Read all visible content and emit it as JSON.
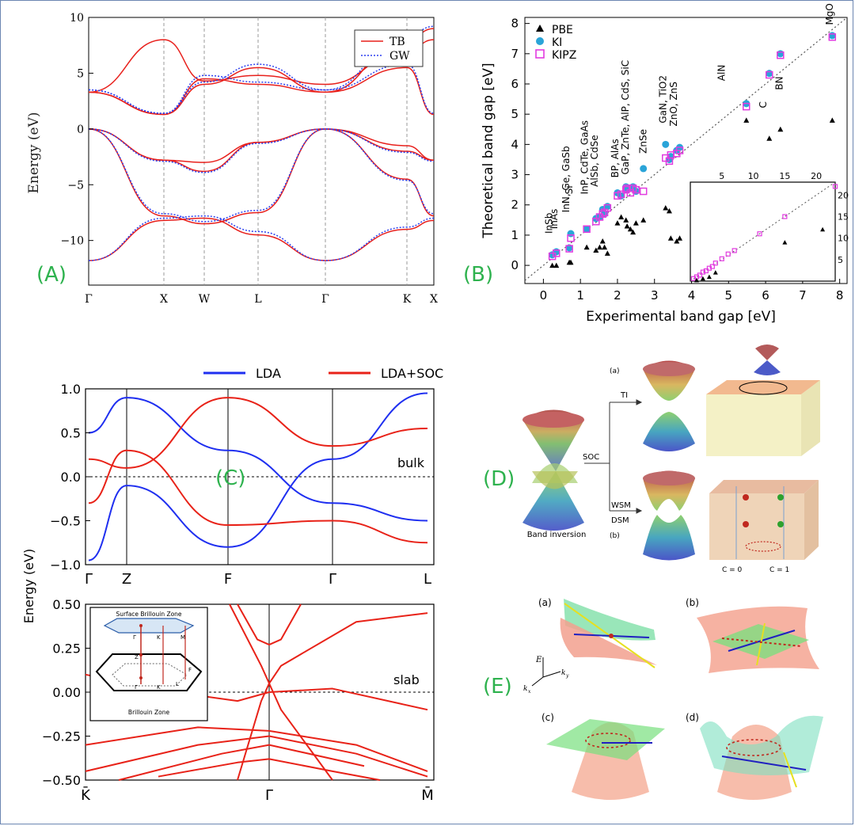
{
  "panel_labels": {
    "A": "(A)",
    "B": "(B)",
    "C": "(C)",
    "D": "(D)",
    "E": "(E)"
  },
  "colors": {
    "label_green": "#2eb24e",
    "tb_red": "#e8201c",
    "gw_blue": "#2b3ff0",
    "lda_blue": "#1f2ff0",
    "soc_red": "#e82218",
    "ki_blue": "#2aa4d8",
    "kipz_magenta": "#e23be0",
    "pbe_black": "#000000"
  },
  "chart_data": [
    {
      "id": "A",
      "type": "line",
      "ylabel": "Energy (eV)",
      "ylim": [
        -14,
        10
      ],
      "yticks": [
        "10",
        "5",
        "0",
        "−5",
        "−10"
      ],
      "kpath": [
        "Γ",
        "X",
        "W",
        "L",
        "Γ",
        "K",
        "X"
      ],
      "legend": {
        "placement": "top-right",
        "entries": [
          "TB",
          "GW"
        ]
      },
      "series": [
        {
          "name": "TB",
          "style": "solid",
          "color": "#e8201c",
          "bands": [
            [
              -11.8,
              -8.2,
              -8.0,
              -9.5,
              -11.8,
              -9.0,
              -8.2
            ],
            [
              0,
              -2.8,
              -3.8,
              -1.2,
              0,
              -2.0,
              -2.8
            ],
            [
              0,
              -2.8,
              -3.0,
              -1.2,
              0,
              -1.5,
              -2.8
            ],
            [
              0,
              -7.8,
              -8.5,
              -7.5,
              0,
              -4.5,
              -7.8
            ],
            [
              3.3,
              1.3,
              4.5,
              4.0,
              3.3,
              8.0,
              9.0
            ],
            [
              3.3,
              1.3,
              4.0,
              5.5,
              3.3,
              5.5,
              1.3
            ],
            [
              3.3,
              8.0,
              4.3,
              4.8,
              4.0,
              7.0,
              8.0
            ]
          ]
        },
        {
          "name": "GW",
          "style": "dotted",
          "color": "#2b3ff0",
          "bands": [
            [
              -11.8,
              -8.0,
              -7.8,
              -9.2,
              -11.8,
              -8.8,
              -8.0
            ],
            [
              0,
              -2.9,
              -3.9,
              -1.3,
              0,
              -2.1,
              -2.9
            ],
            [
              0,
              -7.6,
              -8.3,
              -7.3,
              0,
              -4.6,
              -7.6
            ],
            [
              3.5,
              1.4,
              4.8,
              4.2,
              3.5,
              8.3,
              9.2
            ],
            [
              3.5,
              1.4,
              4.2,
              5.8,
              3.5,
              5.8,
              1.4
            ]
          ]
        }
      ]
    },
    {
      "id": "B",
      "type": "scatter",
      "xlabel": "Experimental band gap [eV]",
      "ylabel": "Theoretical band gap [eV]",
      "xlim": [
        -0.5,
        8.2
      ],
      "ylim": [
        -0.6,
        8.2
      ],
      "xticks": [
        "0",
        "1",
        "2",
        "3",
        "4",
        "5",
        "6",
        "7",
        "8"
      ],
      "yticks": [
        "0",
        "1",
        "2",
        "3",
        "4",
        "5",
        "6",
        "7",
        "8"
      ],
      "legend": {
        "placement": "top-left",
        "entries": [
          "PBE",
          "KI",
          "KIPZ"
        ]
      },
      "annotations": [
        "InSb",
        "InAs",
        "InN, Ge, GaSb",
        "Si",
        "InP, CdTe, GaAs",
        "AlSb, CdSe",
        "BP, AlAs",
        "GaP, ZnTe, AlP, CdS, SiC",
        "ZnSe",
        "GaN, TiO2",
        "ZnO, ZnS",
        "AlN",
        "C",
        "BN",
        "MgO"
      ],
      "x": [
        0.24,
        0.35,
        0.7,
        0.74,
        1.17,
        1.42,
        1.52,
        1.6,
        1.65,
        1.73,
        2.0,
        2.1,
        2.23,
        2.26,
        2.35,
        2.42,
        2.5,
        2.7,
        3.3,
        3.4,
        3.44,
        3.6,
        3.68,
        6.1,
        5.48,
        6.4,
        7.8
      ],
      "series": [
        {
          "name": "PBE",
          "marker": "triangle",
          "values": [
            0.0,
            0.0,
            0.1,
            0.1,
            0.6,
            0.5,
            0.6,
            0.8,
            0.6,
            0.4,
            1.4,
            1.6,
            1.5,
            1.3,
            1.2,
            1.1,
            1.4,
            1.5,
            1.9,
            1.8,
            0.9,
            0.8,
            0.9,
            4.2,
            4.8,
            4.5,
            4.8
          ]
        },
        {
          "name": "KI",
          "marker": "circle",
          "values": [
            0.35,
            0.45,
            0.58,
            1.05,
            1.2,
            1.55,
            1.6,
            1.85,
            1.7,
            1.95,
            2.4,
            2.3,
            2.6,
            2.5,
            2.55,
            2.6,
            2.45,
            3.2,
            4.0,
            3.5,
            3.6,
            3.8,
            3.9,
            6.35,
            5.35,
            7.0,
            7.6
          ]
        },
        {
          "name": "KIPZ",
          "marker": "square-open",
          "values": [
            0.3,
            0.4,
            0.55,
            0.9,
            1.2,
            1.45,
            1.6,
            1.7,
            1.75,
            1.9,
            2.3,
            2.35,
            2.5,
            2.55,
            2.4,
            2.55,
            2.5,
            2.45,
            3.55,
            3.45,
            3.65,
            3.7,
            3.8,
            6.3,
            5.25,
            6.95,
            7.55
          ]
        }
      ],
      "inset": {
        "xticks": [
          "5",
          "10",
          "15",
          "20"
        ],
        "yticks": [
          "5",
          "10",
          "15",
          "20"
        ],
        "xlim": [
          0,
          23
        ],
        "ylim": [
          0,
          23
        ]
      }
    },
    {
      "id": "C-bulk",
      "type": "line",
      "ylabel": "Energy (eV)",
      "ylim": [
        -1.0,
        1.0
      ],
      "yticks": [
        "1.0",
        "0.5",
        "0.0",
        "−0.5",
        "−1.0"
      ],
      "kpath": [
        "Γ",
        "Z",
        "F",
        "Γ",
        "L"
      ],
      "annotation": "bulk",
      "legend": {
        "placement": "top",
        "entries": [
          "LDA",
          "LDA+SOC"
        ]
      },
      "series": [
        {
          "name": "LDA",
          "color": "#1f2ff0",
          "bands": [
            [
              -0.95,
              -0.1,
              -0.8,
              0.2,
              0.95
            ],
            [
              0.5,
              0.9,
              0.3,
              -0.3,
              -0.5
            ]
          ]
        },
        {
          "name": "LDA+SOC",
          "color": "#e82218",
          "bands": [
            [
              -0.3,
              0.3,
              -0.55,
              -0.5,
              -0.75
            ],
            [
              0.2,
              0.1,
              0.9,
              0.35,
              0.55
            ]
          ]
        }
      ]
    },
    {
      "id": "C-slab",
      "type": "line",
      "ylim": [
        -0.5,
        0.5
      ],
      "yticks": [
        "0.50",
        "0.25",
        "0.00",
        "−0.25",
        "−0.50"
      ],
      "kpath": [
        "K̄",
        "Γ",
        "M̄"
      ],
      "annotation": "slab",
      "inset_labels": [
        "Surface Brillouin Zone",
        "Γ",
        "K",
        "M",
        "Z",
        "F",
        "Γ",
        "K",
        "L",
        "Brillouin Zone"
      ]
    }
  ],
  "diagram_D": {
    "labels": {
      "a": "(a)",
      "b": "(b)",
      "ti": "TI",
      "soc": "SOC",
      "wsm": "WSM",
      "dsm": "DSM",
      "band_inversion": "Band inversion",
      "c0": "C = 0",
      "c1": "C = 1"
    }
  },
  "diagram_E": {
    "labels": {
      "a": "(a)",
      "b": "(b)",
      "c": "(c)",
      "d": "(d)",
      "E": "E",
      "kx": "k",
      "kx_sub": "x",
      "ky": "k",
      "ky_sub": "y"
    }
  }
}
